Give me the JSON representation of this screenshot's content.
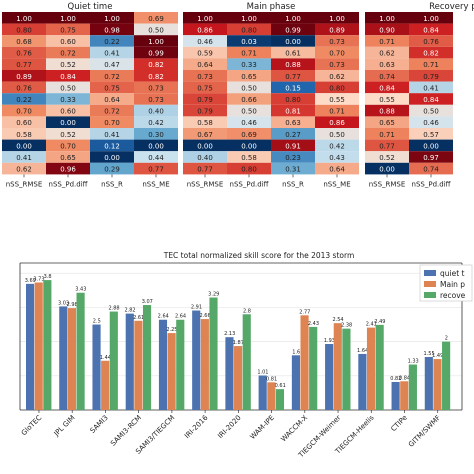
{
  "chart_data": [
    {
      "type": "heatmap",
      "title": "Quiet time",
      "columns": [
        "nSS_RMSE",
        "nSS_Pd.diff",
        "nSS_R",
        "nSS_ME"
      ],
      "values": [
        [
          1.0,
          1.0,
          1.0,
          0.69
        ],
        [
          0.8,
          0.75,
          0.98,
          0.5
        ],
        [
          0.68,
          0.6,
          0.22,
          1.0
        ],
        [
          0.76,
          0.72,
          0.41,
          0.99
        ],
        [
          0.77,
          0.52,
          0.47,
          0.82
        ],
        [
          0.89,
          0.84,
          0.72,
          0.82
        ],
        [
          0.76,
          0.5,
          0.75,
          0.73
        ],
        [
          0.22,
          0.33,
          0.64,
          0.73
        ],
        [
          0.7,
          0.6,
          0.72,
          0.4
        ],
        [
          0.6,
          0.0,
          0.7,
          0.42
        ],
        [
          0.58,
          0.52,
          0.41,
          0.3
        ],
        [
          0.0,
          0.7,
          0.12,
          0.0
        ],
        [
          0.41,
          0.65,
          0.0,
          0.44
        ],
        [
          0.62,
          0.96,
          0.29,
          0.77
        ]
      ]
    },
    {
      "type": "heatmap",
      "title": "Main phase",
      "columns": [
        "nSS_RMSE",
        "nSS_Pd.diff",
        "nSS_R",
        "nSS_ME"
      ],
      "values": [
        [
          1.0,
          1.0,
          1.0,
          1.0
        ],
        [
          0.86,
          0.8,
          0.99,
          0.89
        ],
        [
          0.46,
          0.03,
          0.0,
          0.73
        ],
        [
          0.59,
          0.71,
          0.61,
          0.7
        ],
        [
          0.64,
          0.33,
          0.88,
          0.73
        ],
        [
          0.73,
          0.65,
          0.77,
          0.62
        ],
        [
          0.75,
          0.5,
          0.15,
          0.8
        ],
        [
          0.79,
          0.66,
          0.8,
          0.55
        ],
        [
          0.79,
          0.5,
          0.81,
          0.71
        ],
        [
          0.58,
          0.46,
          0.63,
          0.86
        ],
        [
          0.67,
          0.69,
          0.27,
          0.5
        ],
        [
          0.0,
          0.0,
          0.91,
          0.42
        ],
        [
          0.4,
          0.58,
          0.23,
          0.43
        ],
        [
          0.77,
          0.8,
          0.31,
          0.64
        ]
      ]
    },
    {
      "type": "heatmap",
      "title": "Recovery phase",
      "columns": [
        "nSS_RMSE",
        "nSS_Pd.diff"
      ],
      "values": [
        [
          1.0,
          1.0
        ],
        [
          0.9,
          0.84
        ],
        [
          0.71,
          0.76
        ],
        [
          0.62,
          0.82
        ],
        [
          0.63,
          0.71
        ],
        [
          0.74,
          0.79
        ],
        [
          0.84,
          0.41
        ],
        [
          0.55,
          0.84
        ],
        [
          0.88,
          0.5
        ],
        [
          0.65,
          0.46
        ],
        [
          0.71,
          0.57
        ],
        [
          0.77,
          0.0
        ],
        [
          0.52,
          0.97
        ],
        [
          0.0,
          0.74
        ]
      ]
    },
    {
      "type": "bar",
      "title": "TEC total normalized skill score for the 2013 storm",
      "categories": [
        "GloTEC",
        "JPL GIM",
        "SAMI3",
        "SAMI3-RCM",
        "SAMI3/TIEGCM",
        "IRI-2016",
        "IRI-2020",
        "WAM-IPE",
        "WACCM-X",
        "TIEGCM-Weimer",
        "TIEGCM-Heelis",
        "CTIPe",
        "GITM/SWMF"
      ],
      "series": [
        {
          "name": "quiet t",
          "color": "#4c72b0",
          "values": [
            3.69,
            3.03,
            2.5,
            2.82,
            2.64,
            2.91,
            2.13,
            1.01,
            1.6,
            1.93,
            1.64,
            0.82,
            1.55
          ]
        },
        {
          "name": "Main p",
          "color": "#dd8452",
          "values": [
            3.73,
            2.98,
            1.44,
            2.61,
            2.25,
            2.66,
            1.87,
            0.81,
            2.77,
            2.54,
            2.41,
            0.84,
            1.49
          ]
        },
        {
          "name": "recove",
          "color": "#55a868",
          "values": [
            3.8,
            3.43,
            2.88,
            3.07,
            2.64,
            3.29,
            2.8,
            0.61,
            2.43,
            2.38,
            2.49,
            1.33,
            2.0
          ]
        }
      ],
      "ylim": [
        0,
        4.3
      ],
      "grid": true,
      "legend": "top-right"
    }
  ]
}
